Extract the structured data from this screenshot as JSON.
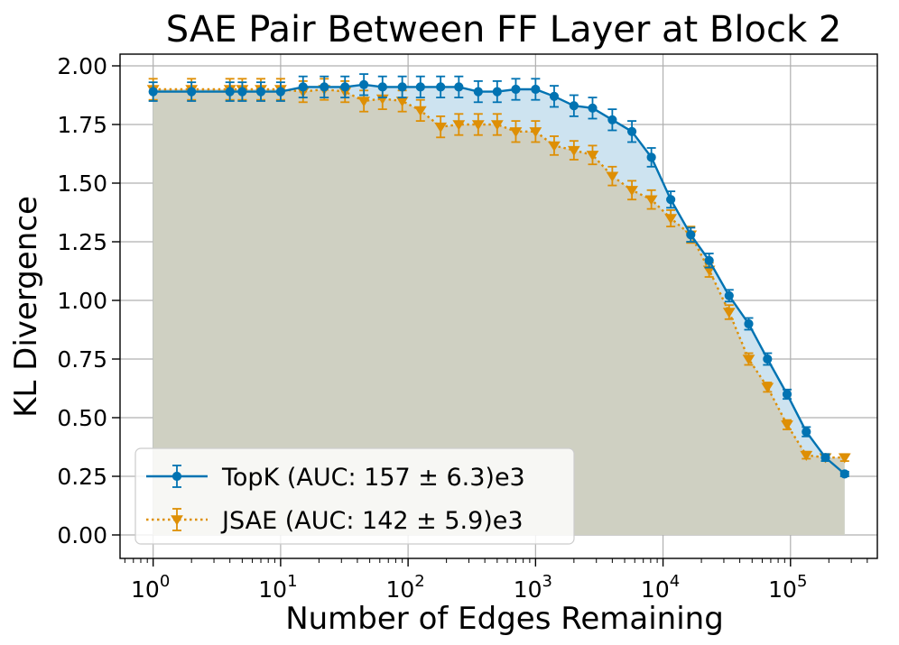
{
  "chart_data": {
    "type": "line",
    "title": "SAE Pair Between FF Layer at Block 2",
    "xlabel": "Number of Edges Remaining",
    "ylabel": "KL Divergence",
    "xscale": "log",
    "xlim": [
      0.55,
      480000
    ],
    "ylim": [
      -0.1,
      2.05
    ],
    "xticks": [
      1,
      10,
      100,
      1000,
      10000,
      100000
    ],
    "xtick_labels": [
      {
        "base": "10",
        "exp": "0"
      },
      {
        "base": "10",
        "exp": "1"
      },
      {
        "base": "10",
        "exp": "2"
      },
      {
        "base": "10",
        "exp": "3"
      },
      {
        "base": "10",
        "exp": "4"
      },
      {
        "base": "10",
        "exp": "5"
      }
    ],
    "yticks": [
      0.0,
      0.25,
      0.5,
      0.75,
      1.0,
      1.25,
      1.5,
      1.75,
      2.0
    ],
    "ytick_labels": [
      "0.00",
      "0.25",
      "0.50",
      "0.75",
      "1.00",
      "1.25",
      "1.50",
      "1.75",
      "2.00"
    ],
    "grid": true,
    "legend_position": "bottom-left",
    "series": [
      {
        "name": "TopK (AUC: 157 ± 6.3)e3",
        "color": "#0173b2",
        "marker": "circle",
        "linestyle": "solid",
        "points": [
          {
            "x": 1,
            "y": 1.89,
            "err": 0.04
          },
          {
            "x": 2,
            "y": 1.89,
            "err": 0.04
          },
          {
            "x": 4,
            "y": 1.89,
            "err": 0.04
          },
          {
            "x": 5,
            "y": 1.89,
            "err": 0.04
          },
          {
            "x": 7,
            "y": 1.89,
            "err": 0.04
          },
          {
            "x": 10,
            "y": 1.89,
            "err": 0.04
          },
          {
            "x": 15,
            "y": 1.91,
            "err": 0.045
          },
          {
            "x": 22,
            "y": 1.91,
            "err": 0.045
          },
          {
            "x": 32,
            "y": 1.91,
            "err": 0.045
          },
          {
            "x": 45,
            "y": 1.92,
            "err": 0.045
          },
          {
            "x": 63,
            "y": 1.91,
            "err": 0.045
          },
          {
            "x": 90,
            "y": 1.91,
            "err": 0.045
          },
          {
            "x": 125,
            "y": 1.91,
            "err": 0.045
          },
          {
            "x": 180,
            "y": 1.91,
            "err": 0.045
          },
          {
            "x": 250,
            "y": 1.91,
            "err": 0.045
          },
          {
            "x": 355,
            "y": 1.89,
            "err": 0.045
          },
          {
            "x": 500,
            "y": 1.89,
            "err": 0.045
          },
          {
            "x": 700,
            "y": 1.9,
            "err": 0.045
          },
          {
            "x": 1000,
            "y": 1.9,
            "err": 0.045
          },
          {
            "x": 1400,
            "y": 1.87,
            "err": 0.045
          },
          {
            "x": 2000,
            "y": 1.83,
            "err": 0.045
          },
          {
            "x": 2800,
            "y": 1.82,
            "err": 0.045
          },
          {
            "x": 4000,
            "y": 1.77,
            "err": 0.045
          },
          {
            "x": 5700,
            "y": 1.72,
            "err": 0.045
          },
          {
            "x": 8100,
            "y": 1.61,
            "err": 0.04
          },
          {
            "x": 11500,
            "y": 1.43,
            "err": 0.035
          },
          {
            "x": 16500,
            "y": 1.28,
            "err": 0.03
          },
          {
            "x": 23000,
            "y": 1.17,
            "err": 0.03
          },
          {
            "x": 33000,
            "y": 1.02,
            "err": 0.025
          },
          {
            "x": 47000,
            "y": 0.9,
            "err": 0.025
          },
          {
            "x": 66000,
            "y": 0.75,
            "err": 0.025
          },
          {
            "x": 94000,
            "y": 0.6,
            "err": 0.02
          },
          {
            "x": 133000,
            "y": 0.44,
            "err": 0.02
          },
          {
            "x": 188000,
            "y": 0.33,
            "err": 0.015
          },
          {
            "x": 266000,
            "y": 0.26,
            "err": 0.01
          }
        ]
      },
      {
        "name": "JSAE (AUC: 142 ± 5.9)e3",
        "color": "#de8f05",
        "marker": "triangle-down",
        "linestyle": "dotted",
        "points": [
          {
            "x": 1,
            "y": 1.9,
            "err": 0.045
          },
          {
            "x": 2,
            "y": 1.9,
            "err": 0.045
          },
          {
            "x": 4,
            "y": 1.9,
            "err": 0.045
          },
          {
            "x": 5,
            "y": 1.9,
            "err": 0.045
          },
          {
            "x": 7,
            "y": 1.9,
            "err": 0.045
          },
          {
            "x": 10,
            "y": 1.9,
            "err": 0.045
          },
          {
            "x": 15,
            "y": 1.89,
            "err": 0.045
          },
          {
            "x": 22,
            "y": 1.9,
            "err": 0.045
          },
          {
            "x": 32,
            "y": 1.89,
            "err": 0.045
          },
          {
            "x": 45,
            "y": 1.85,
            "err": 0.045
          },
          {
            "x": 63,
            "y": 1.86,
            "err": 0.045
          },
          {
            "x": 90,
            "y": 1.85,
            "err": 0.045
          },
          {
            "x": 125,
            "y": 1.81,
            "err": 0.045
          },
          {
            "x": 180,
            "y": 1.74,
            "err": 0.045
          },
          {
            "x": 250,
            "y": 1.75,
            "err": 0.045
          },
          {
            "x": 355,
            "y": 1.75,
            "err": 0.045
          },
          {
            "x": 500,
            "y": 1.75,
            "err": 0.045
          },
          {
            "x": 700,
            "y": 1.72,
            "err": 0.045
          },
          {
            "x": 1000,
            "y": 1.72,
            "err": 0.045
          },
          {
            "x": 1400,
            "y": 1.66,
            "err": 0.04
          },
          {
            "x": 2000,
            "y": 1.64,
            "err": 0.04
          },
          {
            "x": 2800,
            "y": 1.62,
            "err": 0.04
          },
          {
            "x": 4000,
            "y": 1.53,
            "err": 0.04
          },
          {
            "x": 5700,
            "y": 1.47,
            "err": 0.04
          },
          {
            "x": 8100,
            "y": 1.43,
            "err": 0.04
          },
          {
            "x": 11500,
            "y": 1.35,
            "err": 0.035
          },
          {
            "x": 16500,
            "y": 1.28,
            "err": 0.035
          },
          {
            "x": 23000,
            "y": 1.13,
            "err": 0.03
          },
          {
            "x": 33000,
            "y": 0.95,
            "err": 0.03
          },
          {
            "x": 47000,
            "y": 0.75,
            "err": 0.025
          },
          {
            "x": 66000,
            "y": 0.63,
            "err": 0.02
          },
          {
            "x": 94000,
            "y": 0.47,
            "err": 0.02
          },
          {
            "x": 133000,
            "y": 0.34,
            "err": 0.015
          },
          {
            "x": 188000,
            "y": 0.33,
            "err": 0.015
          },
          {
            "x": 266000,
            "y": 0.33,
            "err": 0.015
          }
        ]
      }
    ],
    "fill_colors": {
      "topk_area": "#cde3f0",
      "jsae_area": "#cfcfbf"
    },
    "grid_color": "#b0b0b0"
  }
}
